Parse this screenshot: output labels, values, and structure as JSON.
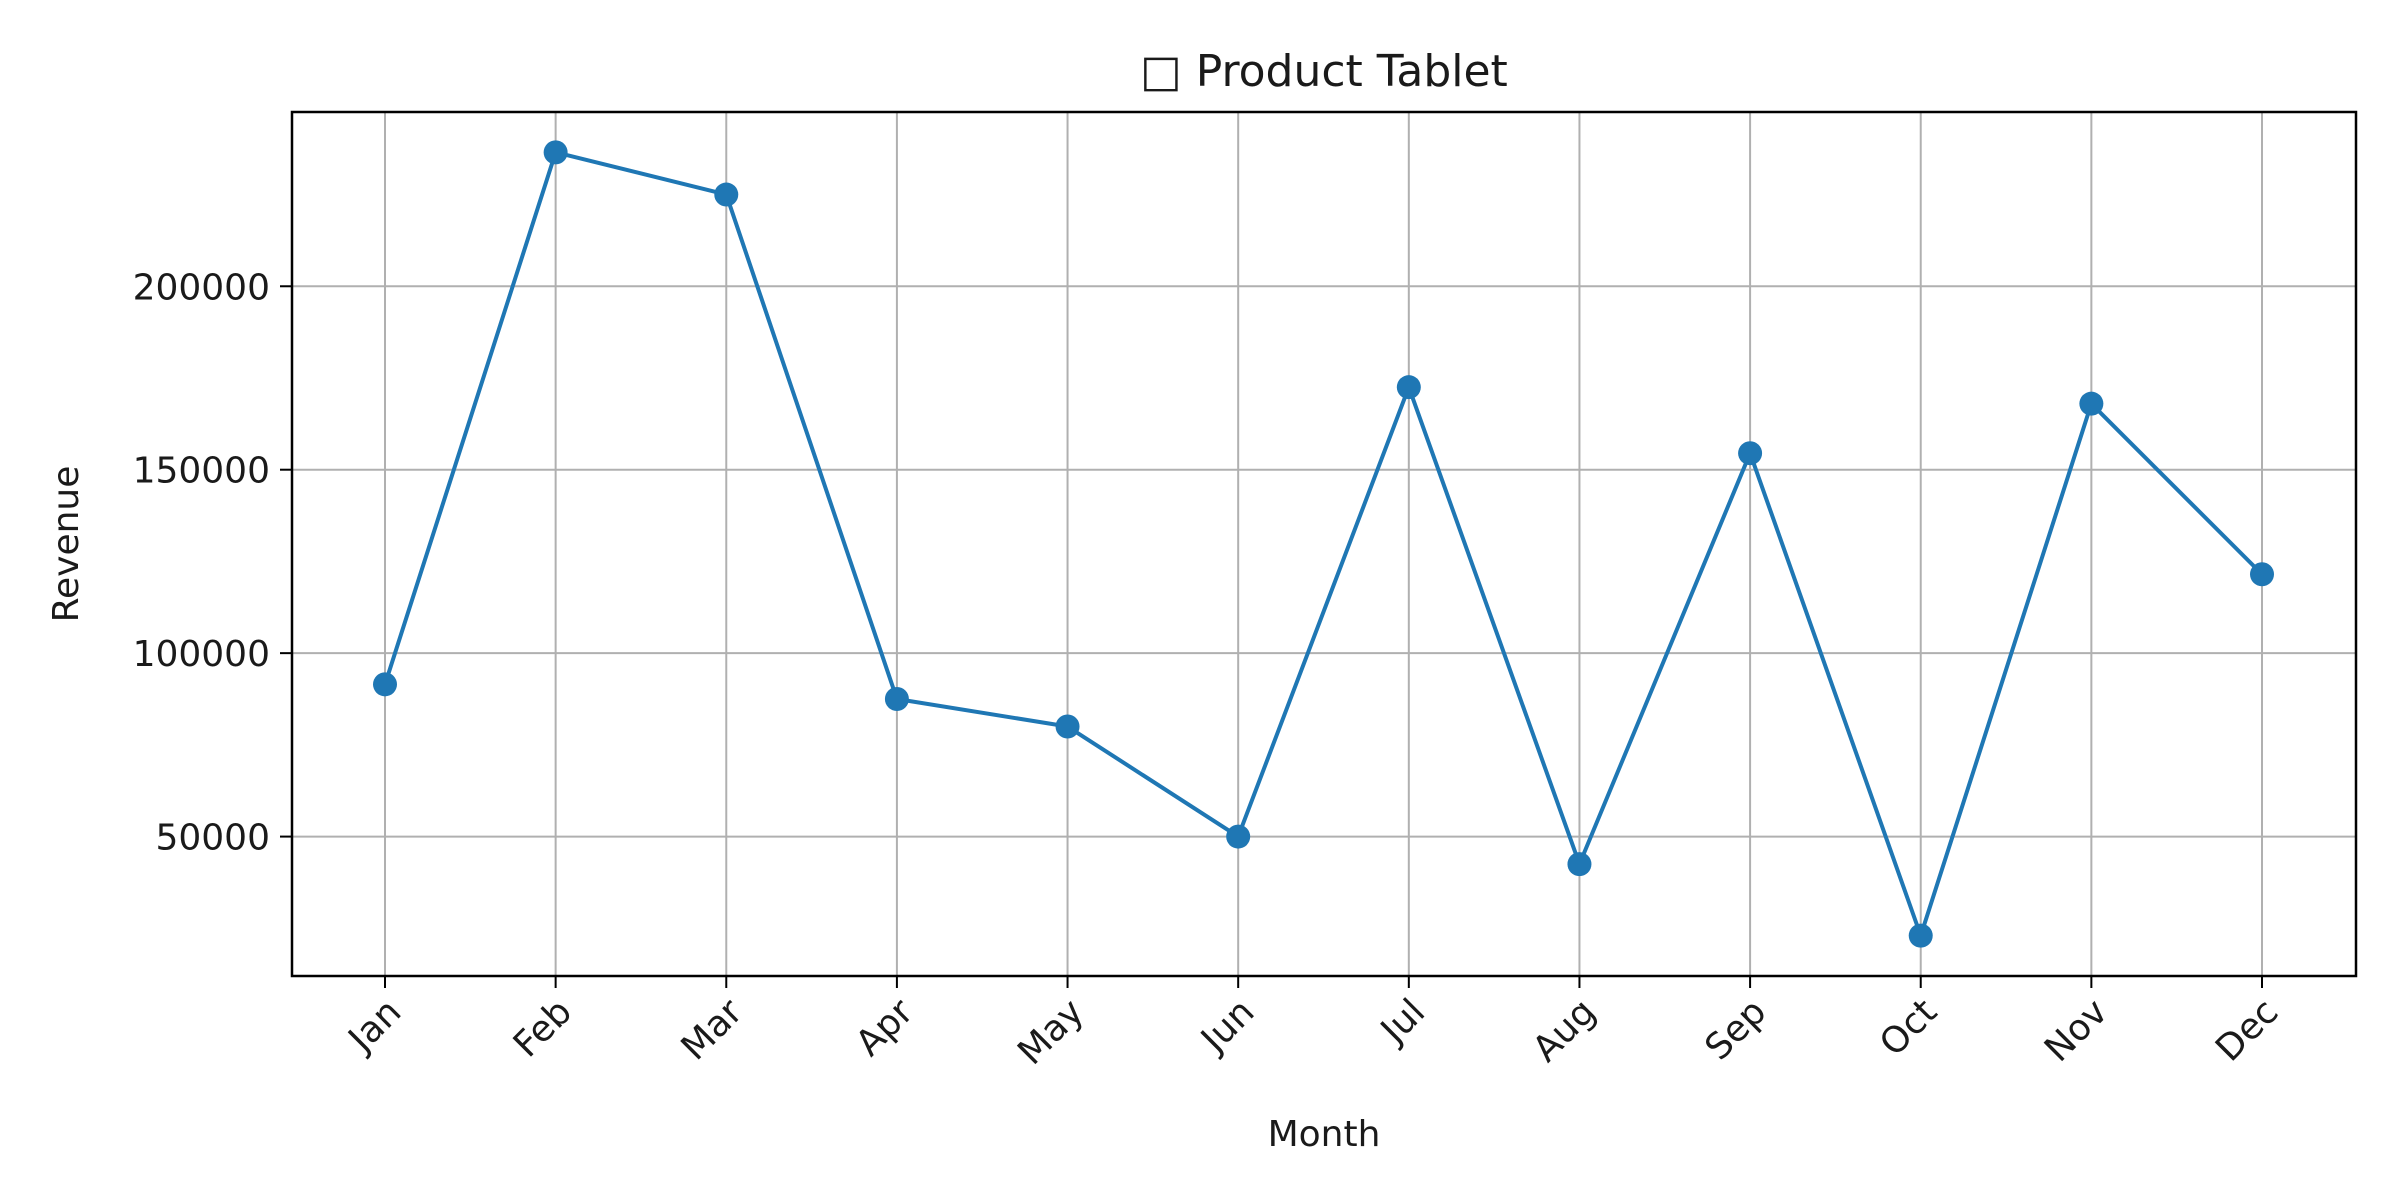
{
  "chart_data": {
    "type": "line",
    "title": "□ Product Tablet",
    "xlabel": "Month",
    "ylabel": "Revenue",
    "categories": [
      "Jan",
      "Feb",
      "Mar",
      "Apr",
      "May",
      "Jun",
      "Jul",
      "Aug",
      "Sep",
      "Oct",
      "Nov",
      "Dec"
    ],
    "series": [
      {
        "values": [
          91500,
          236500,
          225000,
          87500,
          80000,
          50000,
          172500,
          42500,
          154500,
          23000,
          168000,
          121500
        ]
      }
    ],
    "yticks": [
      50000,
      100000,
      150000,
      200000
    ],
    "ytick_labels": [
      "50000",
      "100000",
      "150000",
      "200000"
    ],
    "ylim": [
      12000,
      247500
    ],
    "grid": true,
    "line_color": "#1f77b4",
    "marker": "circle"
  }
}
